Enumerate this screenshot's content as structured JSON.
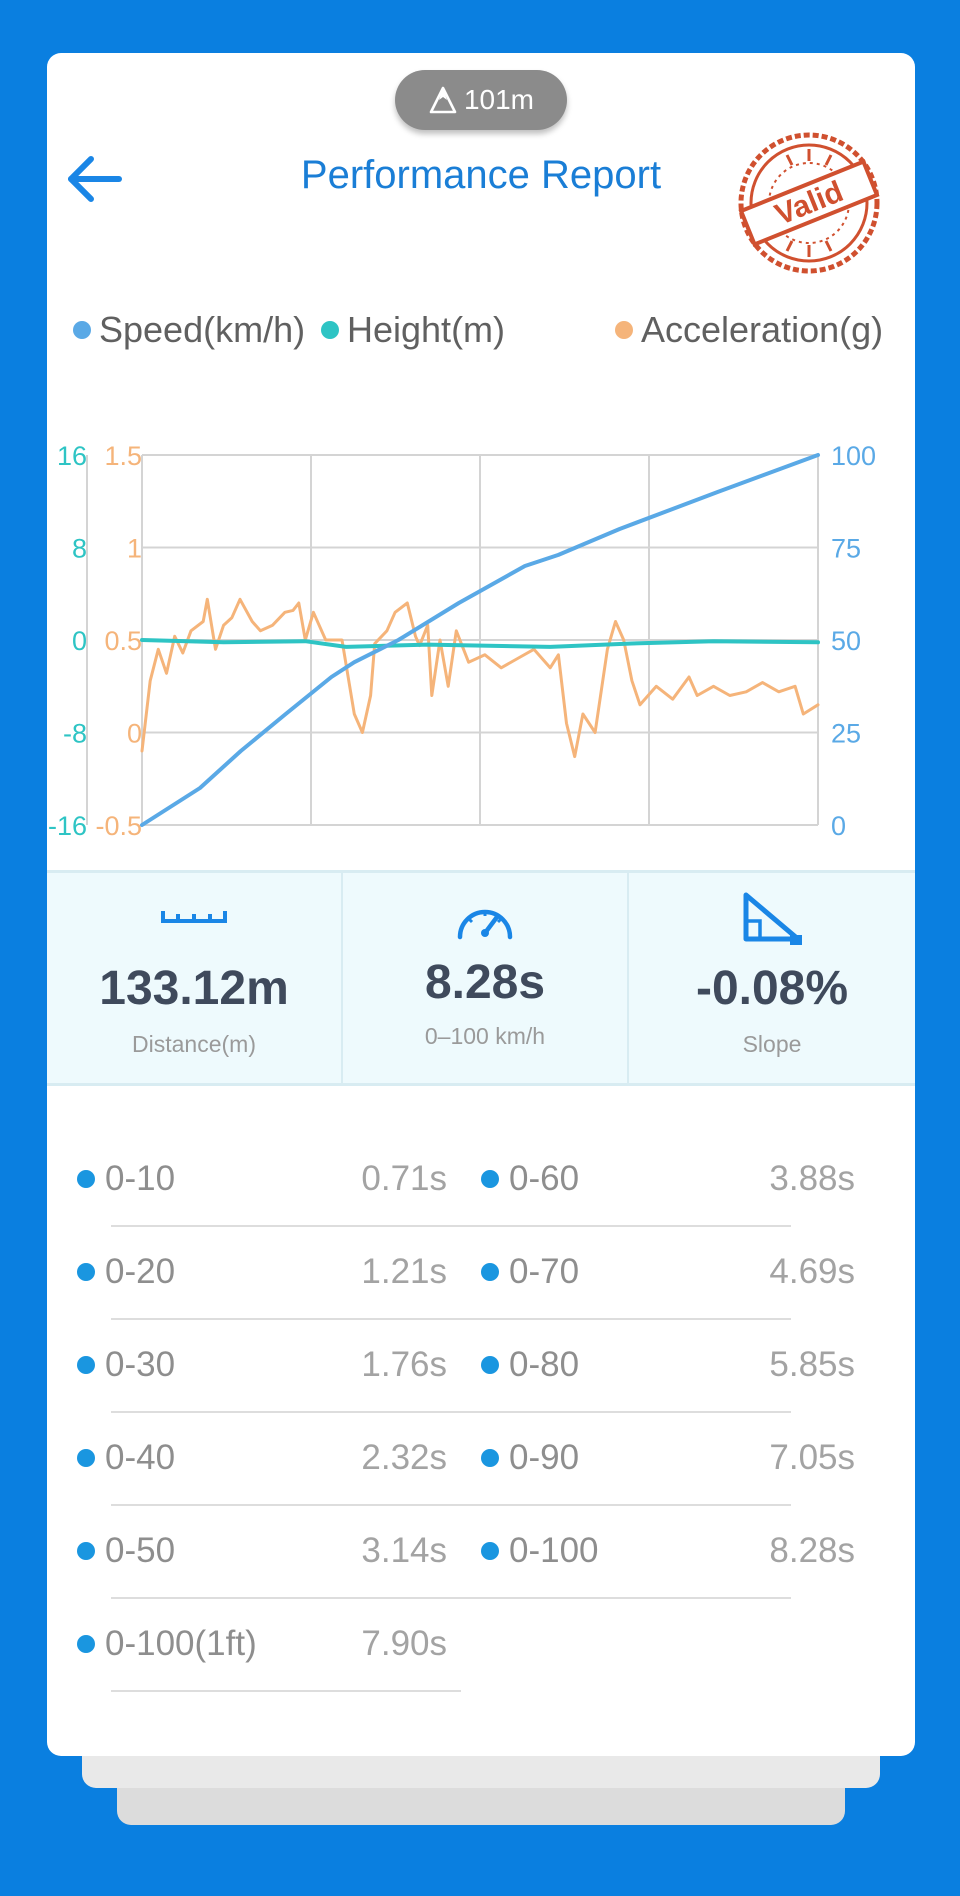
{
  "altitude_badge": {
    "text": "101m",
    "icon": "mountain-icon"
  },
  "header": {
    "title": "Performance Report",
    "back_icon": "arrow-left-icon",
    "stamp_text": "Valid"
  },
  "colors": {
    "speed": "#5aa9e6",
    "height": "#2ec4c4",
    "acceleration": "#f5b47a",
    "accent": "#1a7ed6",
    "page_bg": "#0a7fe0"
  },
  "chart_data": {
    "type": "line",
    "legend": [
      "Speed(km/h)",
      "Height(m)",
      "Acceleration(g)"
    ],
    "axes": {
      "height": {
        "range": [
          -16,
          16
        ],
        "ticks": [
          "16",
          "8",
          "0",
          "-8",
          "-16"
        ]
      },
      "acceleration": {
        "range": [
          -0.5,
          1.5
        ],
        "ticks": [
          "1.5",
          "1",
          "0.5",
          "0",
          "-0.5"
        ]
      },
      "speed": {
        "range": [
          0,
          100
        ],
        "ticks": [
          "100",
          "75",
          "50",
          "25",
          "0"
        ]
      },
      "x": {
        "range": [
          0,
          8.28
        ],
        "unit": "s"
      }
    },
    "series": [
      {
        "name": "Speed(km/h)",
        "axis": "speed",
        "points": [
          [
            0,
            0
          ],
          [
            0.71,
            10
          ],
          [
            1.21,
            20
          ],
          [
            1.76,
            30
          ],
          [
            2.32,
            40
          ],
          [
            2.6,
            44
          ],
          [
            3.14,
            50
          ],
          [
            3.88,
            60
          ],
          [
            4.69,
            70
          ],
          [
            5.1,
            73
          ],
          [
            5.85,
            80
          ],
          [
            7.05,
            90
          ],
          [
            8.28,
            100
          ]
        ]
      },
      {
        "name": "Height(m)",
        "axis": "height",
        "points": [
          [
            0,
            0
          ],
          [
            1,
            -0.2
          ],
          [
            2,
            -0.1
          ],
          [
            2.5,
            -0.6
          ],
          [
            3.5,
            -0.4
          ],
          [
            5,
            -0.6
          ],
          [
            6,
            -0.3
          ],
          [
            7,
            -0.1
          ],
          [
            8.28,
            -0.2
          ]
        ]
      },
      {
        "name": "Acceleration(g)",
        "axis": "acceleration",
        "points": [
          [
            0,
            -0.1
          ],
          [
            0.1,
            0.28
          ],
          [
            0.2,
            0.45
          ],
          [
            0.3,
            0.32
          ],
          [
            0.4,
            0.52
          ],
          [
            0.5,
            0.43
          ],
          [
            0.6,
            0.55
          ],
          [
            0.75,
            0.6
          ],
          [
            0.8,
            0.72
          ],
          [
            0.9,
            0.45
          ],
          [
            1.0,
            0.58
          ],
          [
            1.1,
            0.62
          ],
          [
            1.2,
            0.72
          ],
          [
            1.35,
            0.6
          ],
          [
            1.45,
            0.55
          ],
          [
            1.6,
            0.58
          ],
          [
            1.75,
            0.65
          ],
          [
            1.85,
            0.66
          ],
          [
            1.92,
            0.7
          ],
          [
            2.0,
            0.5
          ],
          [
            2.1,
            0.65
          ],
          [
            2.25,
            0.5
          ],
          [
            2.45,
            0.5
          ],
          [
            2.6,
            0.1
          ],
          [
            2.7,
            0.0
          ],
          [
            2.8,
            0.2
          ],
          [
            2.85,
            0.48
          ],
          [
            3.0,
            0.55
          ],
          [
            3.1,
            0.65
          ],
          [
            3.25,
            0.7
          ],
          [
            3.35,
            0.52
          ],
          [
            3.4,
            0.47
          ],
          [
            3.5,
            0.58
          ],
          [
            3.55,
            0.2
          ],
          [
            3.65,
            0.5
          ],
          [
            3.75,
            0.25
          ],
          [
            3.85,
            0.55
          ],
          [
            4.0,
            0.38
          ],
          [
            4.2,
            0.42
          ],
          [
            4.4,
            0.35
          ],
          [
            4.6,
            0.4
          ],
          [
            4.8,
            0.45
          ],
          [
            5.0,
            0.35
          ],
          [
            5.1,
            0.42
          ],
          [
            5.2,
            0.05
          ],
          [
            5.3,
            -0.13
          ],
          [
            5.4,
            0.1
          ],
          [
            5.55,
            0.0
          ],
          [
            5.7,
            0.45
          ],
          [
            5.8,
            0.6
          ],
          [
            5.9,
            0.5
          ],
          [
            6.0,
            0.28
          ],
          [
            6.1,
            0.15
          ],
          [
            6.3,
            0.25
          ],
          [
            6.5,
            0.18
          ],
          [
            6.7,
            0.3
          ],
          [
            6.8,
            0.2
          ],
          [
            7.0,
            0.25
          ],
          [
            7.2,
            0.2
          ],
          [
            7.4,
            0.22
          ],
          [
            7.6,
            0.27
          ],
          [
            7.8,
            0.22
          ],
          [
            8.0,
            0.25
          ],
          [
            8.1,
            0.1
          ],
          [
            8.28,
            0.15
          ]
        ]
      }
    ]
  },
  "stats": [
    {
      "icon": "ruler-icon",
      "value": "133.12m",
      "label": "Distance(m)"
    },
    {
      "icon": "speedometer-icon",
      "value": "8.28s",
      "label": "0–100 km/h"
    },
    {
      "icon": "slope-icon",
      "value": "-0.08%",
      "label": "Slope"
    }
  ],
  "times": {
    "left": [
      {
        "label": "0-10",
        "value": "0.71s"
      },
      {
        "label": "0-20",
        "value": "1.21s"
      },
      {
        "label": "0-30",
        "value": "1.76s"
      },
      {
        "label": "0-40",
        "value": "2.32s"
      },
      {
        "label": "0-50",
        "value": "3.14s"
      },
      {
        "label": "0-100(1ft)",
        "value": "7.90s"
      }
    ],
    "right": [
      {
        "label": "0-60",
        "value": "3.88s"
      },
      {
        "label": "0-70",
        "value": "4.69s"
      },
      {
        "label": "0-80",
        "value": "5.85s"
      },
      {
        "label": "0-90",
        "value": "7.05s"
      },
      {
        "label": "0-100",
        "value": "8.28s"
      }
    ]
  }
}
